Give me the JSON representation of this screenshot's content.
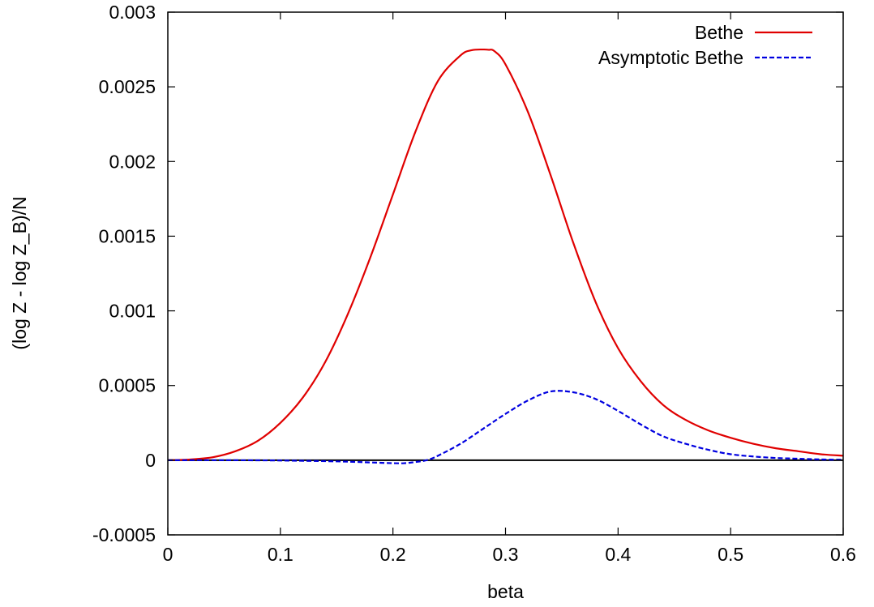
{
  "chart_data": {
    "type": "line",
    "xlabel": "beta",
    "ylabel": "(log Z - log Z_B)/N",
    "xlim": [
      0,
      0.6
    ],
    "ylim": [
      -0.0005,
      0.003
    ],
    "xticks": [
      {
        "value": 0,
        "label": "0"
      },
      {
        "value": 0.1,
        "label": "0.1"
      },
      {
        "value": 0.2,
        "label": "0.2"
      },
      {
        "value": 0.3,
        "label": "0.3"
      },
      {
        "value": 0.4,
        "label": "0.4"
      },
      {
        "value": 0.5,
        "label": "0.5"
      },
      {
        "value": 0.6,
        "label": "0.6"
      }
    ],
    "yticks": [
      {
        "value": -0.0005,
        "label": "-0.0005"
      },
      {
        "value": 0,
        "label": "0"
      },
      {
        "value": 0.0005,
        "label": "0.0005"
      },
      {
        "value": 0.001,
        "label": "0.001"
      },
      {
        "value": 0.0015,
        "label": "0.0015"
      },
      {
        "value": 0.002,
        "label": "0.002"
      },
      {
        "value": 0.0025,
        "label": "0.0025"
      },
      {
        "value": 0.003,
        "label": "0.003"
      }
    ],
    "zero_line": true,
    "grid": false,
    "legend_position": "top-right",
    "series": [
      {
        "name": "Bethe",
        "color": "#e00000",
        "dash": "solid",
        "x": [
          0,
          0.02,
          0.04,
          0.06,
          0.08,
          0.1,
          0.12,
          0.14,
          0.16,
          0.18,
          0.2,
          0.22,
          0.24,
          0.26,
          0.27,
          0.28,
          0.285,
          0.29,
          0.3,
          0.32,
          0.34,
          0.36,
          0.38,
          0.4,
          0.42,
          0.44,
          0.46,
          0.48,
          0.5,
          0.52,
          0.54,
          0.56,
          0.58,
          0.6
        ],
        "values": [
          0,
          5e-06,
          2e-05,
          6e-05,
          0.00013,
          0.00025,
          0.00042,
          0.00066,
          0.00098,
          0.00136,
          0.00178,
          0.0022,
          0.00254,
          0.00271,
          0.002745,
          0.00275,
          0.002748,
          0.00274,
          0.00265,
          0.00233,
          0.00191,
          0.00146,
          0.00106,
          0.00075,
          0.00053,
          0.00037,
          0.00027,
          0.0002,
          0.00015,
          0.00011,
          8e-05,
          6e-05,
          4e-05,
          3e-05
        ]
      },
      {
        "name": "Asymptotic Bethe",
        "color": "#0000e0",
        "dash": "dashed",
        "x": [
          0,
          0.05,
          0.1,
          0.15,
          0.18,
          0.2,
          0.21,
          0.22,
          0.23,
          0.24,
          0.26,
          0.28,
          0.3,
          0.32,
          0.34,
          0.36,
          0.38,
          0.4,
          0.42,
          0.44,
          0.46,
          0.48,
          0.5,
          0.52,
          0.54,
          0.56,
          0.58,
          0.6
        ],
        "values": [
          0,
          0,
          -2e-06,
          -8e-06,
          -1.5e-05,
          -2e-05,
          -2e-05,
          -1.2e-05,
          0,
          3e-05,
          0.00011,
          0.00021,
          0.00031,
          0.0004,
          0.00046,
          0.000455,
          0.00041,
          0.00033,
          0.00024,
          0.00016,
          0.00011,
          7e-05,
          4e-05,
          2.5e-05,
          1.5e-05,
          1e-05,
          5e-06,
          3e-06
        ]
      }
    ]
  }
}
